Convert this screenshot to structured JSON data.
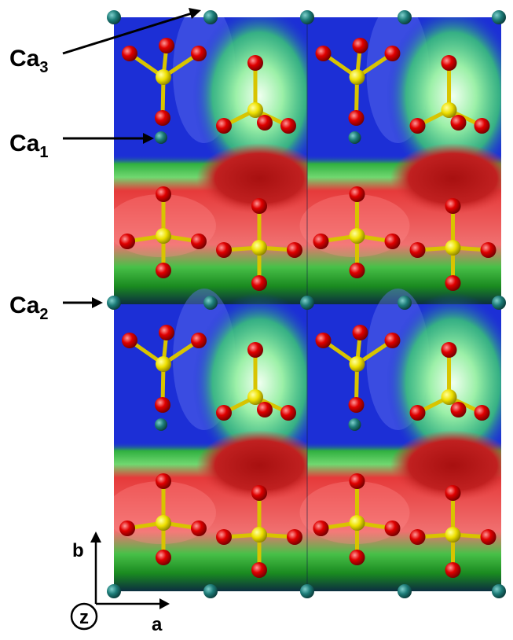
{
  "labels": [
    {
      "element": "Ca",
      "index": "3"
    },
    {
      "element": "Ca",
      "index": "1"
    },
    {
      "element": "Ca",
      "index": "2"
    }
  ],
  "axis_labels": {
    "b": "b",
    "a": "a",
    "z": "z"
  }
}
